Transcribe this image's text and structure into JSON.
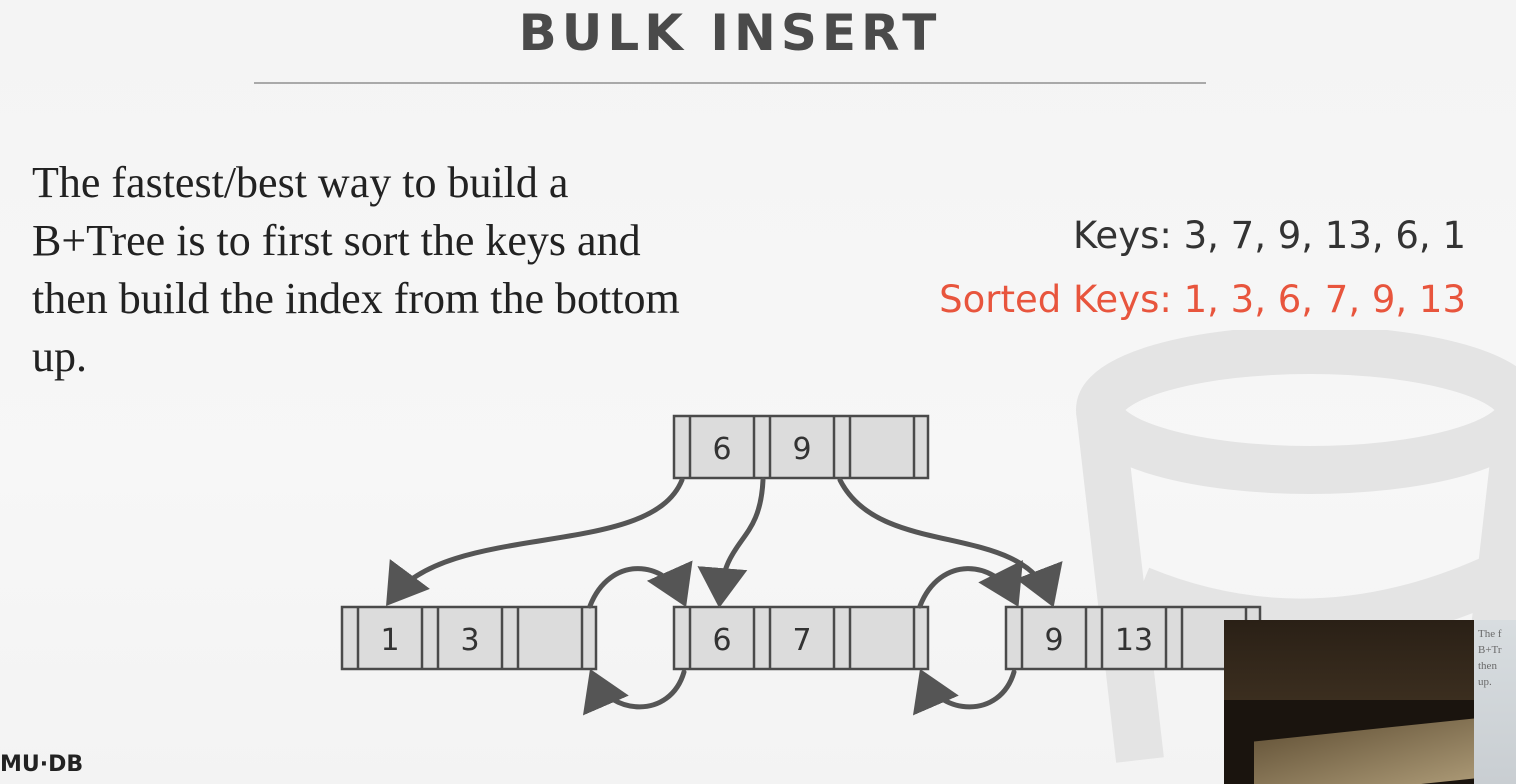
{
  "slide": {
    "title": "BULK INSERT",
    "body_lines": [
      "The fastest/best way to build a",
      "B+Tree is to first sort the keys and",
      "then build the index from the bottom",
      "up."
    ],
    "keys_label": "Keys: 3, 7, 9, 13, 6, 1",
    "sorted_keys_label": "Sorted Keys: 1, 3, 6, 7, 9, 13",
    "footer": "MU·DB"
  },
  "tree": {
    "root_keys": [
      "6",
      "9",
      ""
    ],
    "leaves": [
      {
        "keys": [
          "1",
          "3",
          ""
        ]
      },
      {
        "keys": [
          "6",
          "7",
          ""
        ]
      },
      {
        "keys": [
          "9",
          "13",
          ""
        ]
      }
    ]
  },
  "video": {
    "overlay_lines": [
      "The f",
      "B+Tr",
      "then",
      "up."
    ]
  },
  "colors": {
    "accent": "#e8553d",
    "text": "#222222",
    "node_fill": "#dcdcdc",
    "node_stroke": "#4a4a4a",
    "arrow": "#555555"
  }
}
